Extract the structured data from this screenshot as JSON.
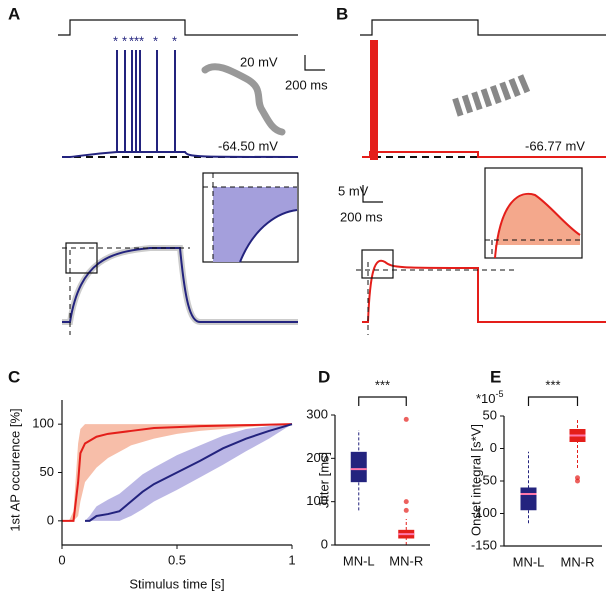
{
  "panels": {
    "A": {
      "label": "A",
      "scale_v": "20 mV",
      "scale_t": "200 ms",
      "rest": "-64.50 mV"
    },
    "B": {
      "label": "B",
      "rest": "-66.77 mV"
    },
    "inset_scale_v": "5 mV",
    "inset_scale_t": "200 ms"
  },
  "chart_data": [
    {
      "type": "line",
      "label": "C",
      "x_label": "Stimulus time [s]",
      "y_label": "1st AP occurence [%]",
      "xlim": [
        0,
        1
      ],
      "xticks": [
        0,
        0.5,
        1
      ],
      "ylim": [
        -25,
        125
      ],
      "yticks": [
        0,
        50,
        100
      ],
      "series": [
        {
          "color": "#e41e1a",
          "band_color": "#f4a88c",
          "x": [
            0,
            0.03,
            0.05,
            0.07,
            0.08,
            0.1,
            0.15,
            0.2,
            0.3,
            0.4,
            0.5,
            0.6,
            0.8,
            1
          ],
          "values": [
            0,
            0,
            0,
            40,
            70,
            80,
            87,
            90,
            93,
            96,
            97,
            98,
            99,
            100
          ],
          "lower": [
            0,
            0,
            0,
            5,
            20,
            40,
            55,
            65,
            78,
            85,
            90,
            93,
            97,
            100
          ],
          "upper": [
            0,
            0,
            10,
            80,
            95,
            100,
            100,
            100,
            100,
            100,
            100,
            100,
            100,
            100
          ]
        },
        {
          "color": "#23237e",
          "band_color": "#a49fdc",
          "x": [
            0.1,
            0.12,
            0.15,
            0.2,
            0.25,
            0.3,
            0.35,
            0.4,
            0.5,
            0.6,
            0.7,
            0.8,
            0.9,
            1
          ],
          "values": [
            0,
            0,
            5,
            7,
            10,
            20,
            30,
            38,
            50,
            62,
            75,
            85,
            93,
            100
          ],
          "lower": [
            0,
            0,
            0,
            0,
            0,
            5,
            12,
            20,
            32,
            45,
            58,
            72,
            85,
            100
          ],
          "upper": [
            0,
            5,
            15,
            22,
            28,
            38,
            48,
            55,
            68,
            78,
            88,
            95,
            98,
            100
          ]
        }
      ]
    },
    {
      "type": "box",
      "label": "D",
      "y_label": "Jitter [ms]",
      "significance": "***",
      "categories": [
        "MN-L",
        "MN-R"
      ],
      "ylim": [
        0,
        300
      ],
      "yticks": [
        0,
        100,
        200,
        300
      ],
      "colors": [
        "#23237e",
        "#e41e1a"
      ],
      "boxes": [
        {
          "low": 80,
          "q1": 145,
          "median": 175,
          "q3": 215,
          "high": 265
        },
        {
          "low": 0,
          "q1": 15,
          "median": 25,
          "q3": 35,
          "high": 60
        }
      ],
      "outliers": [
        [],
        [
          290,
          100,
          80
        ]
      ]
    },
    {
      "type": "box",
      "label": "E",
      "y_label": "Onset integral [s*V]",
      "significance": "***",
      "multiplier_base": "*10",
      "multiplier_exp": "-5",
      "categories": [
        "MN-L",
        "MN-R"
      ],
      "ylim": [
        -150,
        50
      ],
      "yticks": [
        -150,
        -100,
        -50,
        0,
        50
      ],
      "colors": [
        "#23237e",
        "#e41e1a"
      ],
      "boxes": [
        {
          "low": -115,
          "q1": -95,
          "median": -70,
          "q3": -60,
          "high": -5
        },
        {
          "low": -30,
          "q1": 10,
          "median": 20,
          "q3": 30,
          "high": 45
        }
      ],
      "outliers": [
        [],
        [
          -45,
          -50
        ]
      ]
    }
  ]
}
